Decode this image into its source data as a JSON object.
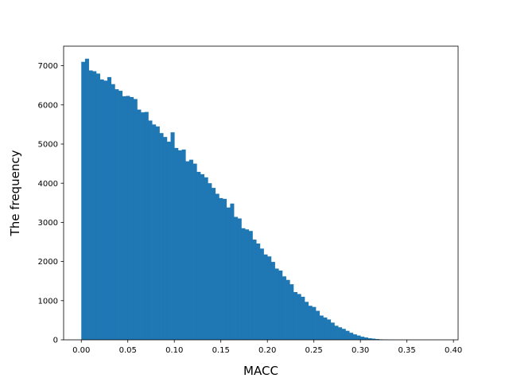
{
  "chart_data": {
    "type": "bar",
    "title": "",
    "xlabel": "MACC",
    "ylabel": "The frequency",
    "xlim": [
      -0.019,
      0.405
    ],
    "ylim": [
      0,
      7500
    ],
    "bin_width": 0.004,
    "bin_start": 0.0,
    "bar_color": "#1f77b4",
    "grid": false,
    "x_ticks": [
      "0.00",
      "0.05",
      "0.10",
      "0.15",
      "0.20",
      "0.25",
      "0.30",
      "0.35",
      "0.40"
    ],
    "y_ticks": [
      "0",
      "1000",
      "2000",
      "3000",
      "4000",
      "5000",
      "6000",
      "7000"
    ],
    "values": [
      7100,
      7180,
      6880,
      6860,
      6800,
      6650,
      6620,
      6710,
      6530,
      6400,
      6360,
      6220,
      6230,
      6200,
      6150,
      5880,
      5810,
      5820,
      5600,
      5500,
      5450,
      5280,
      5180,
      5060,
      5300,
      4900,
      4840,
      4860,
      4560,
      4600,
      4500,
      4290,
      4230,
      4150,
      4000,
      3880,
      3730,
      3620,
      3600,
      3380,
      3480,
      3140,
      3100,
      2850,
      2820,
      2780,
      2560,
      2460,
      2330,
      2180,
      2130,
      1990,
      1820,
      1770,
      1620,
      1530,
      1420,
      1220,
      1170,
      1100,
      970,
      870,
      840,
      740,
      620,
      570,
      520,
      440,
      360,
      320,
      280,
      230,
      180,
      140,
      110,
      80,
      60,
      40,
      30,
      20,
      12,
      8,
      5,
      3,
      2,
      1,
      1
    ]
  }
}
